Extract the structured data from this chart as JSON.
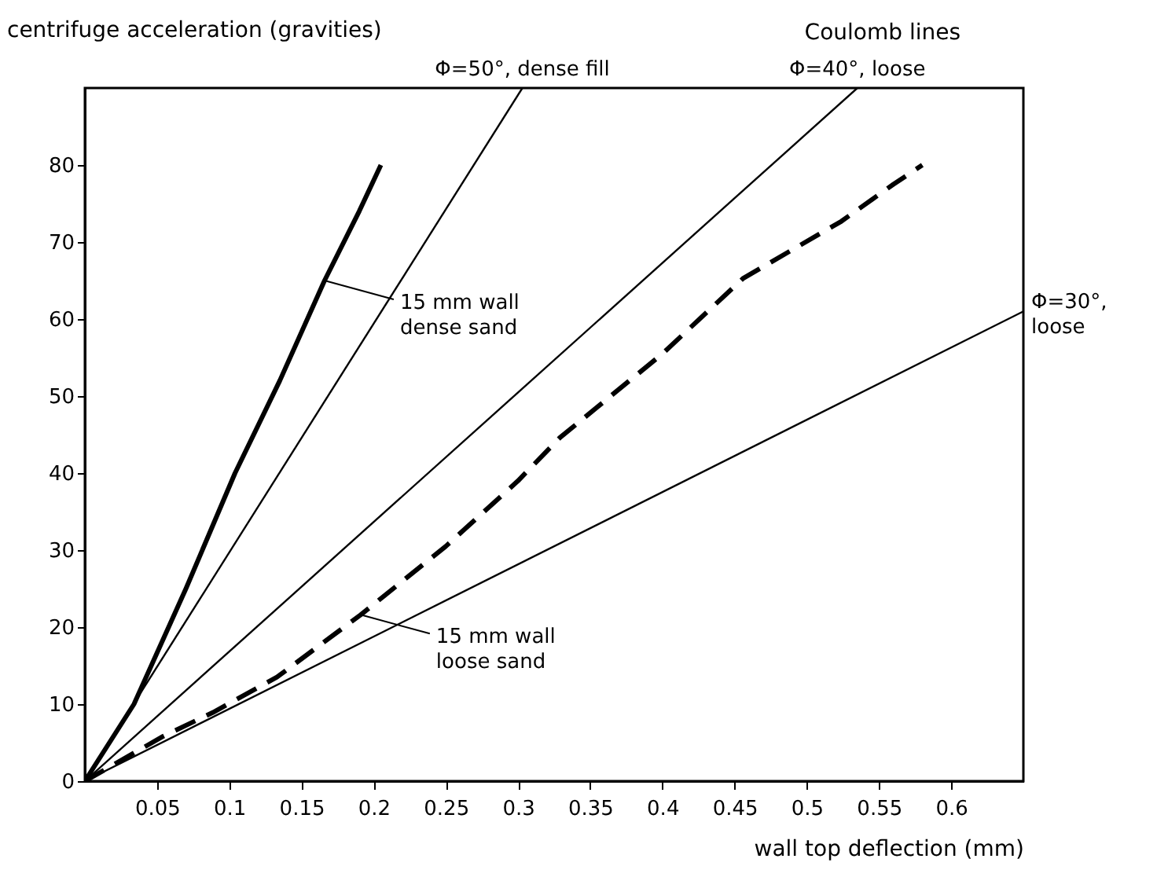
{
  "chart_data": {
    "type": "line",
    "xlabel": "wall top deflection (mm)",
    "ylabel": "centrifuge acceleration (gravities)",
    "xlim": [
      0,
      0.65
    ],
    "ylim": [
      0,
      90
    ],
    "xticks": [
      0.05,
      0.1,
      0.15,
      0.2,
      0.25,
      0.3,
      0.35,
      0.4,
      0.45,
      0.5,
      0.55,
      0.6
    ],
    "yticks": [
      0,
      10,
      20,
      30,
      40,
      50,
      60,
      70,
      80
    ],
    "grid": false,
    "marker": "none",
    "annotations": [
      "Coulomb lines",
      {
        "text": "15 mm wall dense sand",
        "x": 0.166,
        "y": 65
      },
      {
        "text": "15 mm wall loose sand",
        "x": 0.191,
        "y": 21.6
      }
    ],
    "series": [
      {
        "color": "#000000",
        "line_style": "solid",
        "x": [
          0,
          0.034,
          0.07,
          0.104,
          0.135,
          0.166,
          0.19,
          0.205
        ],
        "values": [
          0,
          10,
          25,
          40,
          52,
          65,
          74,
          80
        ]
      },
      {
        "color": "#000000",
        "line_style": "dashed",
        "x": [
          0,
          0.054,
          0.0885,
          0.133,
          0.191,
          0.25,
          0.3,
          0.329,
          0.4,
          0.456,
          0.524,
          0.56,
          0.58
        ],
        "values": [
          0,
          5.8,
          8.9,
          13.5,
          21.6,
          30.5,
          39,
          44.6,
          55.5,
          65.3,
          72.7,
          77.5,
          80
        ]
      },
      {
        "name": "Φ=50°, dense fill",
        "color": "#000000",
        "line_style": "solid",
        "x": [
          0,
          0.303
        ],
        "values": [
          0,
          90
        ]
      },
      {
        "name": "Φ=40°, loose",
        "color": "#000000",
        "line_style": "solid",
        "x": [
          0,
          0.535
        ],
        "values": [
          0,
          90
        ]
      },
      {
        "name": "Φ=30°, loose",
        "color": "#000000",
        "line_style": "solid",
        "x": [
          0,
          0.65
        ],
        "values": [
          0,
          61
        ]
      }
    ]
  }
}
